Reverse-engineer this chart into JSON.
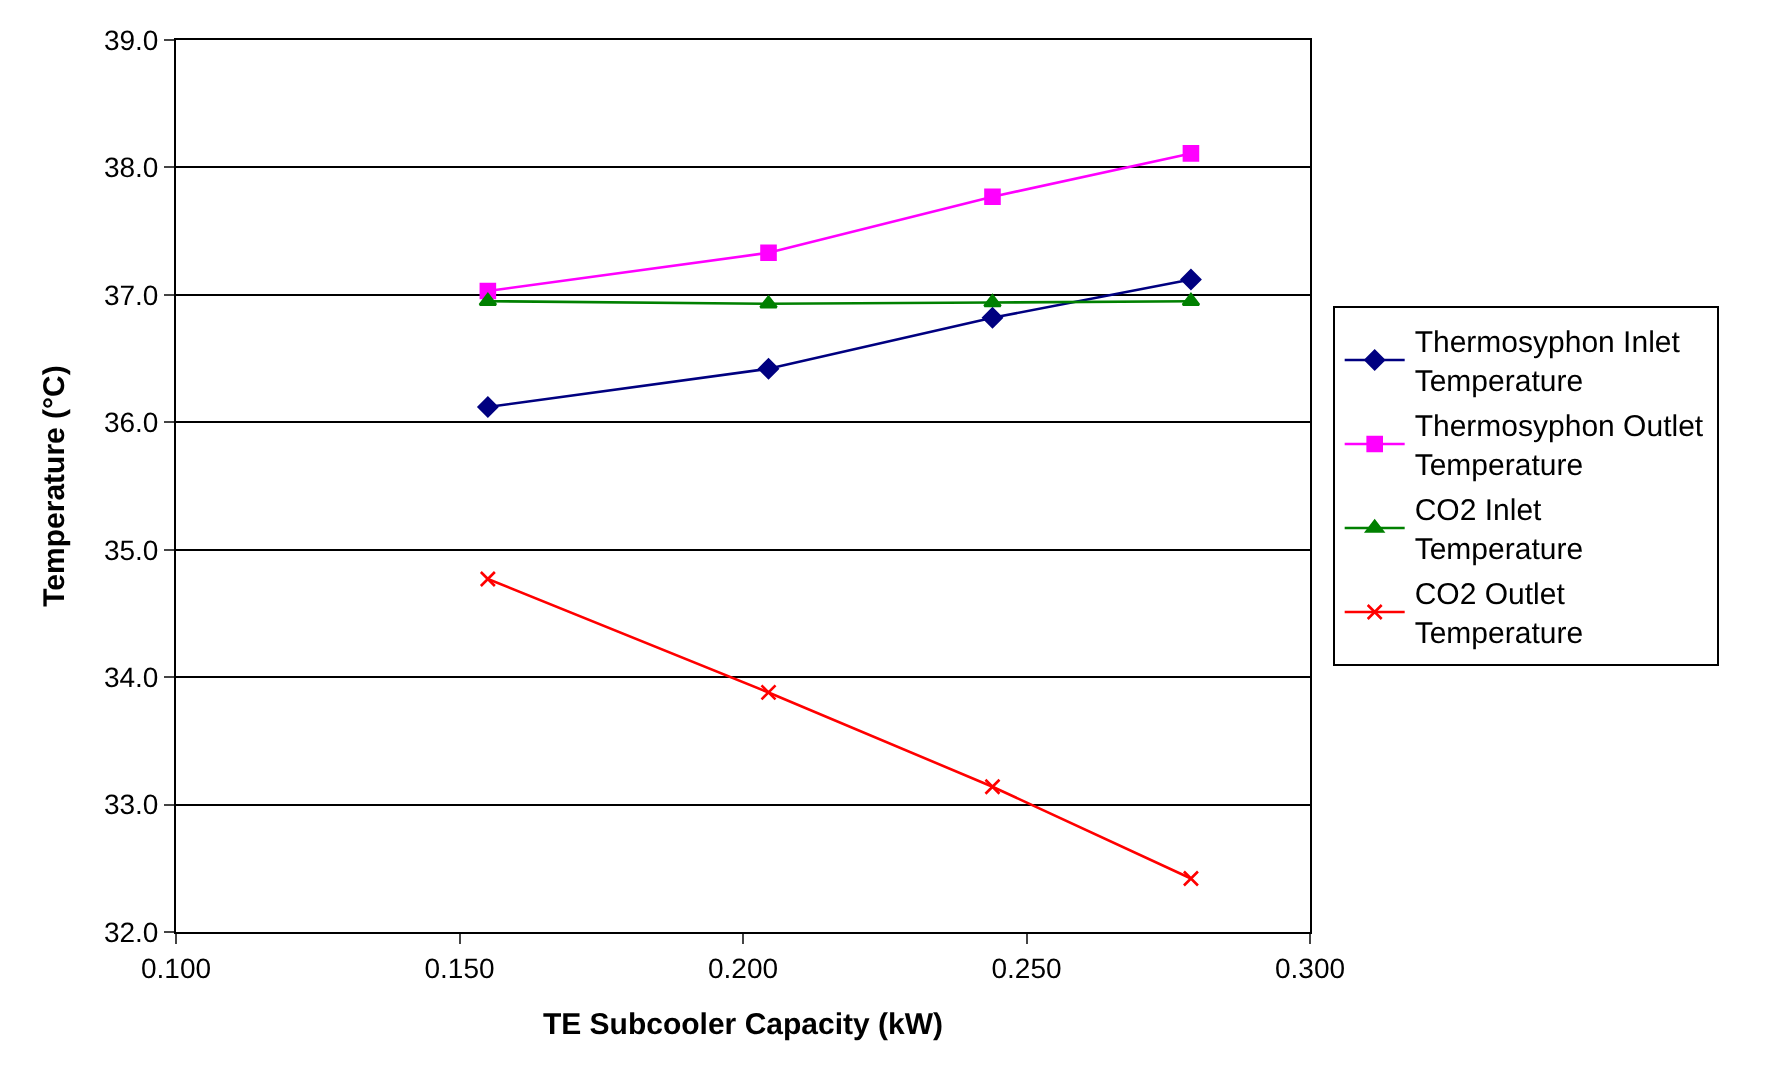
{
  "chart_data": {
    "type": "line",
    "xlabel": "TE Subcooler Capacity (kW)",
    "ylabel": "Temperature (°C)",
    "x": [
      0.155,
      0.2045,
      0.244,
      0.279
    ],
    "series": [
      {
        "name": "Thermosyphon Inlet Temperature",
        "color": "#000080",
        "marker": "diamond",
        "values": [
          36.12,
          36.42,
          36.82,
          37.12
        ]
      },
      {
        "name": "Thermosyphon Outlet Temperature",
        "color": "#ff00ff",
        "marker": "square",
        "values": [
          37.03,
          37.33,
          37.77,
          38.11
        ]
      },
      {
        "name": "CO2 Inlet Temperature",
        "color": "#008000",
        "marker": "triangle",
        "values": [
          36.95,
          36.93,
          36.94,
          36.95
        ]
      },
      {
        "name": "CO2 Outlet Temperature",
        "color": "#ff0000",
        "marker": "cross",
        "values": [
          34.77,
          33.88,
          33.14,
          32.42
        ]
      }
    ],
    "xlim": [
      0.1,
      0.3
    ],
    "xticks": [
      {
        "value": 0.1,
        "label": "0.100"
      },
      {
        "value": 0.15,
        "label": "0.150"
      },
      {
        "value": 0.2,
        "label": "0.200"
      },
      {
        "value": 0.25,
        "label": "0.250"
      },
      {
        "value": 0.3,
        "label": "0.300"
      }
    ],
    "ylim": [
      32,
      39
    ],
    "yticks": [
      {
        "value": 32,
        "label": "32.0"
      },
      {
        "value": 33,
        "label": "33.0"
      },
      {
        "value": 34,
        "label": "34.0"
      },
      {
        "value": 35,
        "label": "35.0"
      },
      {
        "value": 36,
        "label": "36.0"
      },
      {
        "value": 37,
        "label": "37.0"
      },
      {
        "value": 38,
        "label": "38.0"
      },
      {
        "value": 39,
        "label": "39.0"
      }
    ],
    "grid": "y",
    "legend": "right",
    "line_style": "solid"
  }
}
